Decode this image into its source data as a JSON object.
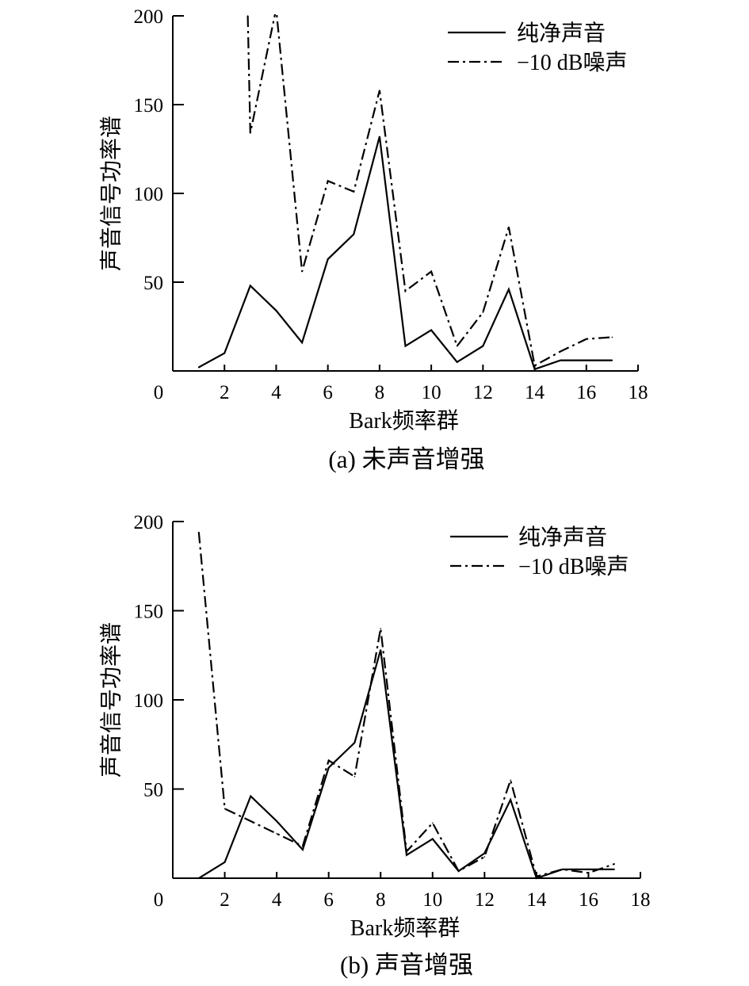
{
  "chart_data": [
    {
      "type": "line",
      "caption": "(a) 未声音增强",
      "xlabel": "Bark频率群",
      "ylabel": "声音信号功率谱",
      "xlim": [
        0,
        18
      ],
      "ylim": [
        0,
        200
      ],
      "xticks": [
        0,
        2,
        4,
        6,
        8,
        10,
        12,
        14,
        16,
        18
      ],
      "yticks": [
        50,
        100,
        150,
        200
      ],
      "grid": false,
      "legend_position": "top-right",
      "series": [
        {
          "name": "纯净声音",
          "style": "solid",
          "x": [
            1,
            2,
            3,
            4,
            5,
            6,
            7,
            8,
            9,
            10,
            11,
            12,
            13,
            14,
            15,
            16,
            17
          ],
          "y": [
            2,
            10,
            48,
            34,
            16,
            63,
            77,
            132,
            14,
            23,
            5,
            14,
            46,
            1,
            6,
            6,
            6
          ]
        },
        {
          "name": "−10 dB噪声",
          "style": "dashdot",
          "x": [
            2.9,
            3,
            4,
            5,
            6,
            7,
            8,
            9,
            10,
            11,
            12,
            13,
            14,
            15,
            16,
            17
          ],
          "y": [
            200,
            134,
            204,
            56,
            107,
            101,
            158,
            45,
            56,
            14,
            33,
            81,
            3,
            11,
            18,
            19
          ]
        }
      ]
    },
    {
      "type": "line",
      "caption": "(b) 声音增强",
      "xlabel": "Bark频率群",
      "ylabel": "声音信号功率谱",
      "xlim": [
        0,
        18
      ],
      "ylim": [
        0,
        200
      ],
      "xticks": [
        0,
        2,
        4,
        6,
        8,
        10,
        12,
        14,
        16,
        18
      ],
      "yticks": [
        50,
        100,
        150,
        200
      ],
      "grid": false,
      "legend_position": "top-right",
      "series": [
        {
          "name": "纯净声音",
          "style": "solid",
          "x": [
            1,
            2,
            3,
            4,
            5,
            6,
            7,
            8,
            9,
            10,
            11,
            12,
            13,
            14,
            15,
            16,
            17
          ],
          "y": [
            0,
            9,
            46,
            32,
            16,
            62,
            76,
            128,
            13,
            22,
            4,
            14,
            44,
            0,
            5,
            5,
            5
          ]
        },
        {
          "name": "−10 dB噪声",
          "style": "dashdot",
          "x": [
            1,
            2,
            3,
            4,
            5,
            6,
            7,
            8,
            9,
            10,
            11,
            12,
            13,
            14,
            15,
            16,
            17
          ],
          "y": [
            194,
            39,
            32,
            25,
            18,
            66,
            57,
            140,
            15,
            31,
            4,
            12,
            55,
            1,
            5,
            3,
            8
          ]
        }
      ]
    }
  ]
}
